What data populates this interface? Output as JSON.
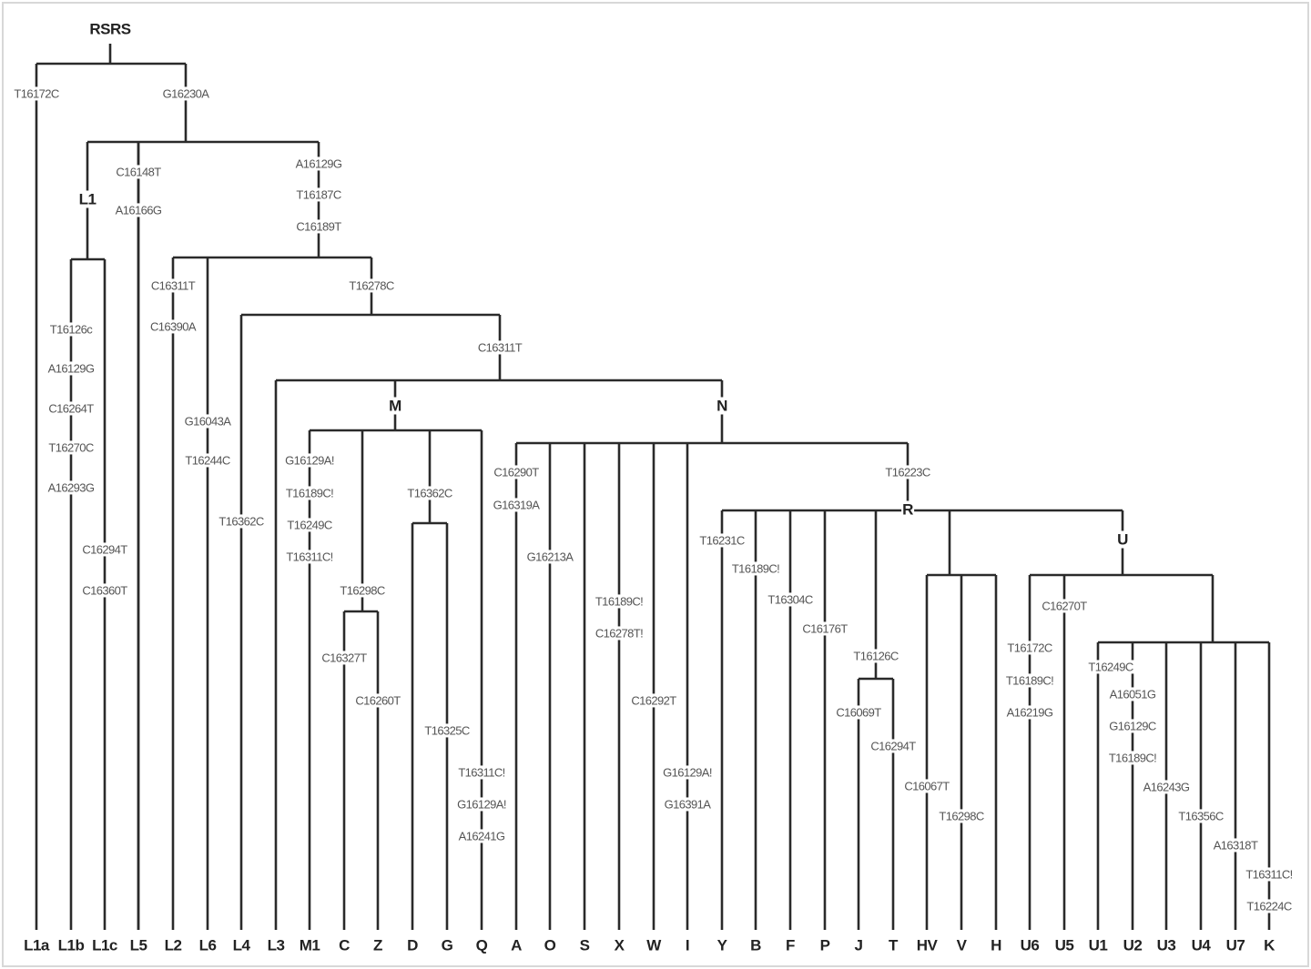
{
  "root": "RSRS",
  "clades": [
    "L1",
    "M",
    "N",
    "R",
    "U"
  ],
  "mutations": [
    "T16172C",
    "G16230A",
    "C16148T",
    "A16166G",
    "A16129G",
    "T16187C",
    "C16189T",
    "T16126c",
    "A16129G",
    "C16264T",
    "T16270C",
    "A16293G",
    "C16294T",
    "C16360T",
    "C16311T",
    "C16390A",
    "T16278C",
    "G16043A",
    "T16244C",
    "T16362C",
    "C16311T",
    "G16129A!",
    "T16189C!",
    "T16249C",
    "T16311C!",
    "T16298C",
    "C16327T",
    "C16260T",
    "T16362C",
    "T16325C",
    "T16311C!",
    "G16129A!",
    "A16241G",
    "C16290T",
    "G16319A",
    "G16213A",
    "T16189C!",
    "C16278T!",
    "C16292T",
    "G16129A!",
    "G16391A",
    "T16223C",
    "T16231C",
    "T16189C!",
    "T16304C",
    "C16176T",
    "T16126C",
    "C16069T",
    "C16294T",
    "C16067T",
    "T16298C",
    "C16270T",
    "T16172C",
    "T16189C!",
    "A16219G",
    "T16249C",
    "A16051G",
    "G16129C",
    "T16189C!",
    "A16243G",
    "T16356C",
    "A16318T",
    "T16311C!",
    "T16224C"
  ],
  "leaves": [
    "L1a",
    "L1b",
    "L1c",
    "L5",
    "L2",
    "L6",
    "L4",
    "L3",
    "M1",
    "C",
    "Z",
    "D",
    "G",
    "Q",
    "A",
    "O",
    "S",
    "X",
    "W",
    "I",
    "Y",
    "B",
    "F",
    "P",
    "J",
    "T",
    "HV",
    "V",
    "H",
    "U6",
    "U5",
    "U1",
    "U2",
    "U3",
    "U4",
    "U7",
    "K"
  ]
}
